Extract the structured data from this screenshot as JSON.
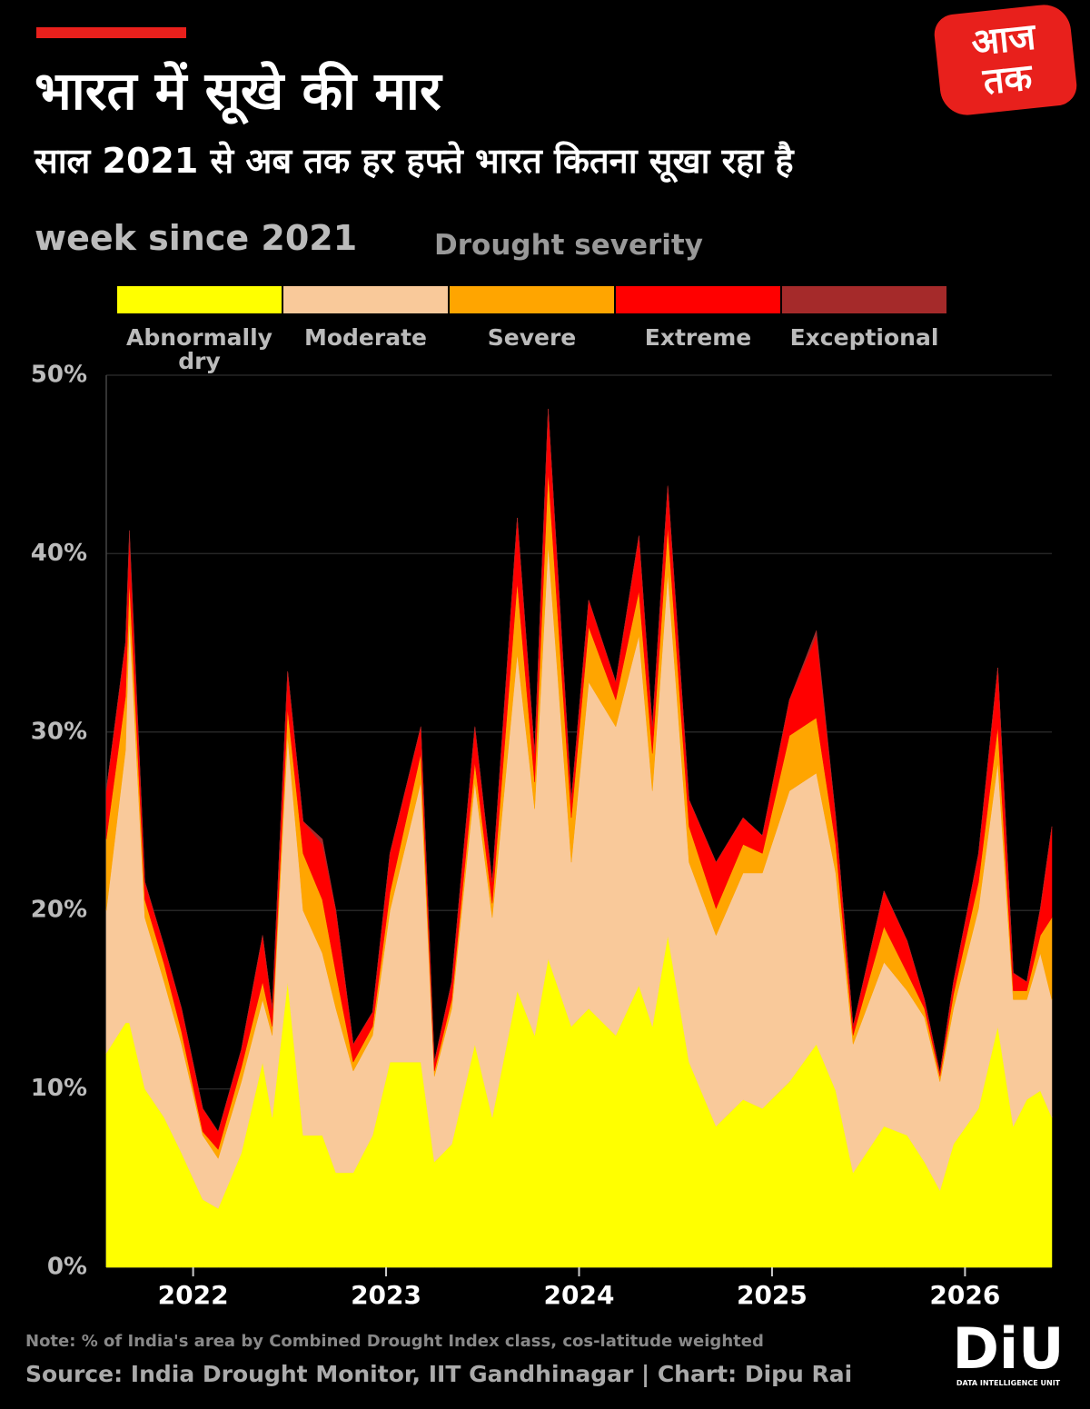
{
  "chart_data": {
    "type": "stacked_area",
    "title": "भारत में सूखे की मार",
    "subtitle": "साल 2021 से अब तक हर हफ्ते भारत कितना सूखा रहा है",
    "x_label": "week since 2021",
    "legend_title": "Drought severity",
    "note": "Note: % of India's area by Combined Drought Index class, cos-latitude weighted",
    "source": "Source: India Drought Monitor, IIT Gandhinagar | Chart: Dipu Rai",
    "xlim": [
      2021.55,
      2026.45
    ],
    "xticks": [
      2022,
      2023,
      2024,
      2025,
      2026
    ],
    "ylim": [
      0,
      50
    ],
    "yticks": [
      {
        "value": 0,
        "label": "0%"
      },
      {
        "value": 10,
        "label": "10%"
      },
      {
        "value": 20,
        "label": "20%"
      },
      {
        "value": 30,
        "label": "30%"
      },
      {
        "value": 40,
        "label": "40%"
      },
      {
        "value": 50,
        "label": "50%"
      }
    ],
    "grid": true,
    "x": [
      2021.55,
      2021.65,
      2021.67,
      2021.75,
      2021.85,
      2021.94,
      2022.05,
      2022.13,
      2022.25,
      2022.36,
      2022.41,
      2022.49,
      2022.57,
      2022.67,
      2022.74,
      2022.83,
      2022.93,
      2023.02,
      2023.18,
      2023.25,
      2023.34,
      2023.46,
      2023.55,
      2023.68,
      2023.77,
      2023.84,
      2023.96,
      2024.05,
      2024.19,
      2024.31,
      2024.38,
      2024.46,
      2024.57,
      2024.71,
      2024.85,
      2024.95,
      2025.09,
      2025.23,
      2025.33,
      2025.42,
      2025.58,
      2025.7,
      2025.79,
      2025.87,
      2025.94,
      2026.07,
      2026.17,
      2026.25,
      2026.32,
      2026.39,
      2026.45
    ],
    "series": [
      {
        "name": "Abnormally dry",
        "color": "#ffff00",
        "values": [
          12,
          13.7,
          13.7,
          10,
          8.4,
          6.4,
          3.8,
          3.3,
          6.4,
          11.5,
          8.4,
          16,
          7.4,
          7.4,
          5.3,
          5.3,
          7.4,
          11.5,
          11.5,
          5.9,
          6.9,
          12.5,
          8.4,
          15.5,
          13,
          17.3,
          13.5,
          14.5,
          13,
          15.8,
          13.5,
          18.6,
          11.5,
          7.9,
          9.4,
          8.9,
          10.4,
          12.5,
          9.9,
          5.3,
          7.9,
          7.4,
          5.9,
          4.3,
          6.9,
          8.9,
          13.5,
          7.9,
          9.4,
          9.9,
          8.4
        ]
      },
      {
        "name": "Moderate",
        "color": "#f9c99a",
        "values": [
          8,
          15.3,
          22.7,
          9.6,
          7.6,
          6.1,
          3.6,
          2.8,
          4,
          3.5,
          4.6,
          13.8,
          12.6,
          10.2,
          9.2,
          5.7,
          5.6,
          8.5,
          15.7,
          4.8,
          7.6,
          14.7,
          11.2,
          18.9,
          12.7,
          23.2,
          9.2,
          18.3,
          17.3,
          19.6,
          13.2,
          20.3,
          11.2,
          10.7,
          12.7,
          13.2,
          16.3,
          15.2,
          12.2,
          7.2,
          9.2,
          8.1,
          8.1,
          6.1,
          7.6,
          11.2,
          14.8,
          7.1,
          5.6,
          7.7,
          6.6
        ]
      },
      {
        "name": "Severe",
        "color": "#ffa500",
        "values": [
          4,
          3,
          2.1,
          1,
          1,
          0.7,
          0.2,
          0.5,
          0.8,
          1,
          0.5,
          1.5,
          3.2,
          3,
          2,
          0.5,
          0.5,
          1,
          1.6,
          0.3,
          0.5,
          1.1,
          0.8,
          4,
          1.5,
          4.1,
          2.5,
          3.1,
          1.5,
          2.5,
          2.1,
          2.6,
          2,
          1.5,
          1.6,
          1.1,
          3.1,
          3.1,
          1.6,
          0.5,
          2,
          1,
          0.5,
          0.3,
          0.8,
          1.5,
          2,
          0.5,
          0.5,
          1,
          4.6
        ]
      },
      {
        "name": "Extreme",
        "color": "#ff0000",
        "values": [
          2.7,
          3,
          2.5,
          1,
          1,
          1.3,
          1.3,
          1,
          1,
          2.6,
          1,
          2.1,
          1.8,
          3.1,
          3.5,
          1,
          0.8,
          2.2,
          1.5,
          0.5,
          1,
          2,
          1.2,
          3.6,
          1.6,
          3.5,
          1,
          1.5,
          1,
          3.1,
          1.5,
          2.3,
          1.5,
          2.6,
          1.5,
          1,
          2,
          4.6,
          1.5,
          0.5,
          2,
          1.8,
          0.5,
          0.2,
          0.7,
          1.6,
          3.3,
          1,
          0.5,
          1.5,
          5.1
        ]
      },
      {
        "name": "Exceptional",
        "color": "#a52a2a",
        "values": [
          0,
          0,
          0.3,
          0,
          0,
          0,
          0,
          0,
          0,
          0,
          0,
          0,
          0,
          0.3,
          0,
          0,
          0,
          0,
          0,
          0,
          0,
          0,
          0,
          0,
          0,
          0,
          0,
          0,
          0,
          0,
          0,
          0,
          0,
          0,
          0,
          0,
          0,
          0.3,
          0,
          0,
          0,
          0,
          0,
          0,
          0,
          0,
          0,
          0,
          0,
          0,
          0
        ]
      }
    ]
  },
  "branding": {
    "logo_lines": [
      "आज",
      "तक"
    ],
    "footer_logo": "DiU",
    "footer_logo_sub": "DATA INTELLIGENCE UNIT"
  }
}
